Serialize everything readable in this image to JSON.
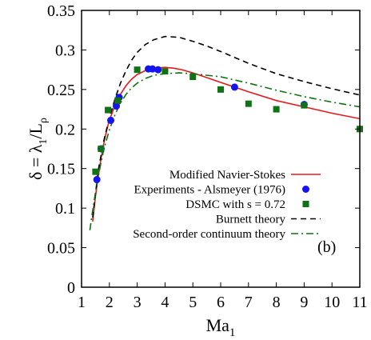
{
  "chart_data": {
    "type": "line",
    "xlabel": {
      "main": "Ma",
      "sub": "1"
    },
    "ylabel": {
      "lhs": "δ = λ",
      "lhs_sub": "1",
      "rhs": "/L",
      "rhs_sub": "ρ"
    },
    "xlim": [
      1,
      11
    ],
    "ylim": [
      0,
      0.35
    ],
    "xticks": [
      1,
      2,
      3,
      4,
      5,
      6,
      7,
      8,
      9,
      10,
      11
    ],
    "yticks": [
      0,
      0.05,
      0.1,
      0.15,
      0.2,
      0.25,
      0.3,
      0.35
    ],
    "ytick_labels": [
      "0",
      "0.05",
      "0.1",
      "0.15",
      "0.2",
      "0.25",
      "0.3",
      "0.35"
    ],
    "annotation": "(b)",
    "legend_position": "bottom-right",
    "grid": false,
    "series": [
      {
        "name": "Modified Navier-Stokes",
        "style": "solid",
        "color": "#e8191c",
        "x": [
          1.4,
          1.5,
          1.6,
          1.7,
          1.8,
          1.9,
          2.0,
          2.2,
          2.4,
          2.6,
          2.8,
          3.0,
          3.3,
          3.6,
          4.0,
          4.3,
          4.6,
          5.0,
          5.5,
          6.0,
          7.0,
          8.0,
          9.0,
          10.0,
          11.0
        ],
        "y": [
          0.083,
          0.115,
          0.14,
          0.163,
          0.182,
          0.198,
          0.211,
          0.23,
          0.244,
          0.255,
          0.263,
          0.269,
          0.274,
          0.277,
          0.278,
          0.277,
          0.275,
          0.271,
          0.265,
          0.259,
          0.247,
          0.236,
          0.228,
          0.22,
          0.213
        ]
      },
      {
        "name": "Experiments - Alsmeyer (1976)",
        "style": "marker-circle",
        "color": "#1414f0",
        "x": [
          1.55,
          1.7,
          2.05,
          2.25,
          2.3,
          2.35,
          3.4,
          3.55,
          3.75,
          6.5,
          9.0
        ],
        "y": [
          0.136,
          0.175,
          0.211,
          0.229,
          0.235,
          0.24,
          0.276,
          0.276,
          0.275,
          0.253,
          0.231
        ]
      },
      {
        "name": "DSMC with s = 0.72",
        "style": "marker-square",
        "color": "#0f7214",
        "x": [
          1.5,
          1.7,
          1.95,
          2.3,
          3.0,
          4.0,
          5.0,
          6.0,
          7.0,
          8.0,
          9.0,
          11.0
        ],
        "y": [
          0.146,
          0.175,
          0.224,
          0.236,
          0.275,
          0.273,
          0.266,
          0.25,
          0.232,
          0.225,
          0.23,
          0.2
        ]
      },
      {
        "name": "Burnett theory",
        "style": "dashed",
        "color": "#000000",
        "x": [
          1.4,
          1.6,
          1.8,
          2.0,
          2.2,
          2.4,
          2.6,
          2.8,
          3.0,
          3.3,
          3.6,
          4.0,
          4.5,
          5.0,
          5.5,
          6.0,
          7.0,
          8.0,
          9.0,
          10.0,
          11.0
        ],
        "y": [
          0.088,
          0.148,
          0.185,
          0.214,
          0.238,
          0.258,
          0.274,
          0.287,
          0.297,
          0.307,
          0.313,
          0.317,
          0.316,
          0.311,
          0.305,
          0.298,
          0.283,
          0.27,
          0.26,
          0.251,
          0.243
        ]
      },
      {
        "name": "Second-order continuum theory",
        "style": "dashdot",
        "color": "#0f7214",
        "x": [
          1.3,
          1.4,
          1.5,
          1.6,
          1.7,
          1.8,
          2.0,
          2.2,
          2.4,
          2.6,
          2.8,
          3.0,
          3.3,
          3.6,
          4.0,
          4.5,
          5.0,
          6.0,
          7.0,
          8.0,
          9.0,
          10.0,
          11.0
        ],
        "y": [
          0.072,
          0.097,
          0.12,
          0.14,
          0.158,
          0.174,
          0.199,
          0.218,
          0.233,
          0.244,
          0.252,
          0.258,
          0.264,
          0.268,
          0.27,
          0.271,
          0.27,
          0.266,
          0.258,
          0.249,
          0.241,
          0.234,
          0.228
        ]
      }
    ]
  }
}
